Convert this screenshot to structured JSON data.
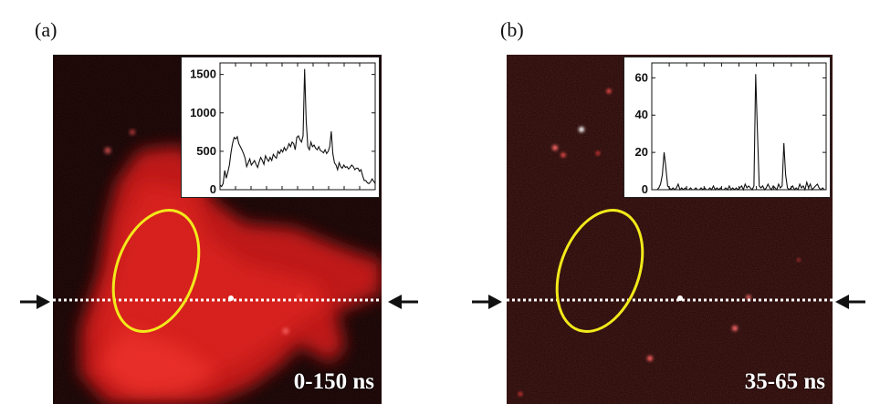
{
  "figure": {
    "panel_a": {
      "label": "(a)",
      "time_window": "0-150 ns"
    },
    "panel_b": {
      "label": "(b)",
      "time_window": "35-65 ns"
    }
  },
  "chart_data": [
    {
      "type": "line",
      "panel": "a",
      "title": "",
      "xlabel": "",
      "ylabel": "",
      "y_ticks": [
        0,
        500,
        1000,
        1500
      ],
      "ylim": [
        0,
        1650
      ],
      "x": [
        0,
        1,
        2,
        3,
        4,
        5,
        6,
        7,
        8,
        9,
        10,
        11,
        12,
        13,
        14,
        15,
        16,
        17,
        18,
        19,
        20,
        21,
        22,
        23,
        24,
        25,
        26,
        27,
        28,
        29,
        30,
        31,
        32,
        33,
        34,
        35,
        36,
        37,
        38,
        39,
        40,
        41,
        42,
        43,
        44,
        45,
        46,
        47,
        48,
        49,
        50,
        51,
        52,
        53,
        54,
        55,
        56,
        57,
        58,
        59,
        60,
        61,
        62,
        63,
        64,
        65,
        66,
        67,
        68,
        69,
        70,
        71,
        72,
        73,
        74,
        75,
        76,
        77,
        78,
        79,
        80,
        81,
        82,
        83,
        84,
        85,
        86,
        87,
        88,
        89,
        90,
        91,
        92,
        93,
        94,
        95,
        96,
        97,
        98,
        99
      ],
      "series": [
        {
          "values": [
            60,
            40,
            80,
            250,
            150,
            230,
            320,
            480,
            600,
            680,
            660,
            690,
            600,
            560,
            520,
            470,
            410,
            300,
            350,
            400,
            320,
            350,
            380,
            330,
            290,
            360,
            420,
            380,
            330,
            440,
            400,
            370,
            420,
            380,
            460,
            430,
            410,
            500,
            470,
            520,
            490,
            550,
            510,
            540,
            600,
            560,
            620,
            600,
            520,
            680,
            700,
            650,
            620,
            700,
            1570,
            900,
            560,
            520,
            620,
            560,
            580,
            540,
            520,
            560,
            510,
            500,
            480,
            520,
            470,
            500,
            560,
            760,
            470,
            350,
            320,
            260,
            350,
            300,
            280,
            320,
            290,
            300,
            270,
            290,
            320,
            300,
            260,
            280,
            280,
            240,
            260,
            180,
            120,
            120,
            90,
            80,
            100,
            140,
            110,
            80
          ]
        }
      ]
    },
    {
      "type": "line",
      "panel": "b",
      "title": "",
      "xlabel": "",
      "ylabel": "",
      "y_ticks": [
        0,
        20,
        40,
        60
      ],
      "ylim": [
        0,
        68
      ],
      "x": [
        0,
        1,
        2,
        3,
        4,
        5,
        6,
        7,
        8,
        9,
        10,
        11,
        12,
        13,
        14,
        15,
        16,
        17,
        18,
        19,
        20,
        21,
        22,
        23,
        24,
        25,
        26,
        27,
        28,
        29,
        30,
        31,
        32,
        33,
        34,
        35,
        36,
        37,
        38,
        39,
        40,
        41,
        42,
        43,
        44,
        45,
        46,
        47,
        48,
        49,
        50,
        51,
        52,
        53,
        54,
        55,
        56,
        57,
        58,
        59,
        60,
        61,
        62,
        63,
        64,
        65,
        66,
        67,
        68,
        69,
        70,
        71,
        72,
        73,
        74,
        75,
        76,
        77,
        78,
        79,
        80,
        81,
        82,
        83,
        84,
        85,
        86,
        87,
        88,
        89,
        90,
        91,
        92,
        93,
        94,
        95,
        96,
        97,
        98,
        99
      ],
      "series": [
        {
          "values": [
            0,
            0,
            0,
            0,
            1,
            3,
            8,
            20,
            12,
            2,
            1,
            0,
            1,
            0,
            1,
            3,
            0,
            1,
            0,
            1,
            0,
            0,
            1,
            0,
            0,
            1,
            0,
            0,
            1,
            0,
            1,
            0,
            0,
            1,
            0,
            2,
            0,
            1,
            0,
            1,
            0,
            0,
            1,
            0,
            2,
            0,
            1,
            0,
            1,
            0,
            1,
            2,
            0,
            3,
            1,
            2,
            1,
            0,
            2,
            62,
            30,
            2,
            1,
            2,
            0,
            1,
            3,
            1,
            0,
            2,
            1,
            0,
            3,
            1,
            2,
            25,
            8,
            1,
            0,
            1,
            2,
            0,
            1,
            0,
            3,
            1,
            2,
            0,
            4,
            1,
            3,
            0,
            1,
            2,
            3,
            1,
            0,
            1,
            0,
            0
          ]
        }
      ]
    }
  ]
}
